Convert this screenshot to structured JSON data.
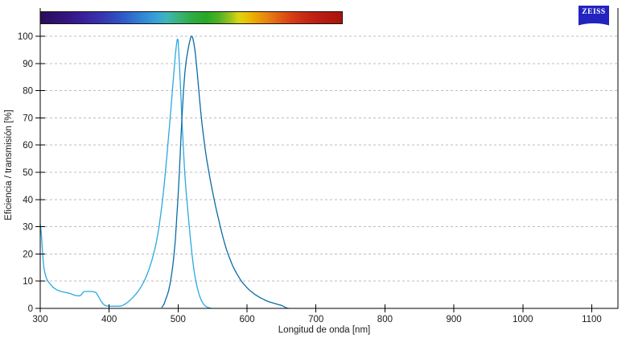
{
  "logo": {
    "text": "ZEISS",
    "background": "#2323C0",
    "text_color": "#FFFFFF"
  },
  "axes": {
    "x_title": "Longitud de onda [nm]",
    "y_title": "Eficiencia / transmisión [%]"
  },
  "colors": {
    "excitation": "#29A9E1",
    "emission": "#0A6BA5",
    "gridline": "#BDBDBD",
    "axis": "#000000",
    "text": "#1A1A1A",
    "background": "#FFFFFF"
  },
  "chart_data": {
    "type": "line",
    "title": "",
    "xlabel": "Longitud de onda [nm]",
    "ylabel": "Eficiencia / transmisión [%]",
    "xlim": [
      300,
      1138
    ],
    "ylim": [
      0,
      100
    ],
    "x_ticks": [
      300,
      400,
      500,
      600,
      700,
      800,
      900,
      1000,
      1100
    ],
    "y_ticks": [
      0,
      10,
      20,
      30,
      40,
      50,
      60,
      70,
      80,
      90,
      100
    ],
    "grid": "horizontal-dashed",
    "legend": "none",
    "series": [
      {
        "name": "excitation-spectrum",
        "color": "#29A9E1",
        "peak_nm": 499,
        "peak_value": 99,
        "points": [
          [
            300,
            31
          ],
          [
            301,
            29
          ],
          [
            302,
            26
          ],
          [
            303,
            22
          ],
          [
            304,
            18.5
          ],
          [
            305,
            15.5
          ],
          [
            306,
            14
          ],
          [
            307,
            12.8
          ],
          [
            308,
            11.8
          ],
          [
            309,
            11
          ],
          [
            311,
            10.1
          ],
          [
            313,
            9.4
          ],
          [
            315,
            8.8
          ],
          [
            318,
            7.9
          ],
          [
            321,
            7.3
          ],
          [
            324,
            6.8
          ],
          [
            328,
            6.4
          ],
          [
            332,
            6.1
          ],
          [
            336,
            5.9
          ],
          [
            340,
            5.7
          ],
          [
            344,
            5.4
          ],
          [
            348,
            5.0
          ],
          [
            352,
            4.7
          ],
          [
            356,
            4.6
          ],
          [
            359,
            4.8
          ],
          [
            361,
            5.6
          ],
          [
            363,
            6.1
          ],
          [
            366,
            6.2
          ],
          [
            370,
            6.2
          ],
          [
            374,
            6.2
          ],
          [
            378,
            6.1
          ],
          [
            381,
            5.8
          ],
          [
            384,
            4.6
          ],
          [
            387,
            3.2
          ],
          [
            390,
            2.0
          ],
          [
            393,
            1.2
          ],
          [
            396,
            0.9
          ],
          [
            400,
            0.8
          ],
          [
            404,
            0.8
          ],
          [
            408,
            0.8
          ],
          [
            412,
            0.8
          ],
          [
            416,
            0.8
          ],
          [
            419,
            1.0
          ],
          [
            422,
            1.4
          ],
          [
            425,
            1.9
          ],
          [
            428,
            2.5
          ],
          [
            431,
            3.2
          ],
          [
            434,
            3.9
          ],
          [
            438,
            5.0
          ],
          [
            442,
            6.3
          ],
          [
            446,
            7.8
          ],
          [
            450,
            9.6
          ],
          [
            454,
            11.8
          ],
          [
            458,
            14.5
          ],
          [
            462,
            17.7
          ],
          [
            466,
            21.5
          ],
          [
            469,
            25
          ],
          [
            472,
            29.5
          ],
          [
            475,
            34.8
          ],
          [
            478,
            41
          ],
          [
            481,
            48.5
          ],
          [
            484,
            57
          ],
          [
            487,
            65.5
          ],
          [
            490,
            74.5
          ],
          [
            492,
            81
          ],
          [
            494,
            87
          ],
          [
            496,
            93
          ],
          [
            497,
            95.5
          ],
          [
            498,
            97.5
          ],
          [
            499,
            99
          ],
          [
            500,
            98.5
          ],
          [
            501,
            94
          ],
          [
            502,
            89
          ],
          [
            503,
            84
          ],
          [
            504,
            78.5
          ],
          [
            505,
            72.5
          ],
          [
            506,
            66.5
          ],
          [
            507,
            62
          ],
          [
            508,
            57
          ],
          [
            509,
            52.5
          ],
          [
            510,
            48.5
          ],
          [
            511,
            45
          ],
          [
            512,
            42
          ],
          [
            514,
            36
          ],
          [
            516,
            30.5
          ],
          [
            518,
            25.2
          ],
          [
            520,
            20.3
          ],
          [
            522,
            16
          ],
          [
            524,
            12.5
          ],
          [
            526,
            9.7
          ],
          [
            528,
            7.4
          ],
          [
            530,
            5.5
          ],
          [
            532,
            4.0
          ],
          [
            534,
            2.8
          ],
          [
            536,
            1.9
          ],
          [
            538,
            1.2
          ],
          [
            540,
            0.8
          ],
          [
            542,
            0.5
          ],
          [
            545,
            0.2
          ],
          [
            548,
            0
          ]
        ]
      },
      {
        "name": "emission-spectrum",
        "color": "#0A6BA5",
        "peak_nm": 520,
        "peak_value": 100,
        "points": [
          [
            476,
            0.3
          ],
          [
            478,
            0.9
          ],
          [
            480,
            1.8
          ],
          [
            482,
            3.3
          ],
          [
            484,
            4.7
          ],
          [
            486,
            6.3
          ],
          [
            488,
            8.6
          ],
          [
            490,
            11.5
          ],
          [
            492,
            15
          ],
          [
            494,
            19.5
          ],
          [
            496,
            25
          ],
          [
            498,
            33
          ],
          [
            500,
            41.5
          ],
          [
            502,
            51
          ],
          [
            504,
            62
          ],
          [
            505,
            67
          ],
          [
            506,
            72
          ],
          [
            507,
            76.5
          ],
          [
            508,
            80.5
          ],
          [
            509,
            84
          ],
          [
            510,
            87
          ],
          [
            511,
            89.3
          ],
          [
            512,
            91.3
          ],
          [
            514,
            94.6
          ],
          [
            516,
            97.2
          ],
          [
            518,
            99.3
          ],
          [
            519,
            99.9
          ],
          [
            520,
            100
          ],
          [
            521,
            99.6
          ],
          [
            522,
            98.5
          ],
          [
            523,
            97.2
          ],
          [
            524,
            95.6
          ],
          [
            525,
            93.6
          ],
          [
            526,
            91.2
          ],
          [
            527,
            88.6
          ],
          [
            528,
            85.8
          ],
          [
            529,
            83
          ],
          [
            530,
            80.2
          ],
          [
            531,
            77.3
          ],
          [
            532,
            74.6
          ],
          [
            533,
            72
          ],
          [
            534,
            69.5
          ],
          [
            535,
            67.2
          ],
          [
            536,
            65
          ],
          [
            537,
            63
          ],
          [
            538,
            61
          ],
          [
            540,
            57.3
          ],
          [
            542,
            54
          ],
          [
            544,
            51
          ],
          [
            546,
            48.1
          ],
          [
            548,
            45.4
          ],
          [
            550,
            42.9
          ],
          [
            552,
            40.4
          ],
          [
            554,
            38
          ],
          [
            556,
            35.7
          ],
          [
            558,
            33.5
          ],
          [
            560,
            31.3
          ],
          [
            562,
            29.2
          ],
          [
            564,
            27.2
          ],
          [
            566,
            25.3
          ],
          [
            568,
            23.5
          ],
          [
            570,
            21.8
          ],
          [
            573,
            19.6
          ],
          [
            576,
            17.6
          ],
          [
            579,
            15.8
          ],
          [
            582,
            14.2
          ],
          [
            585,
            12.8
          ],
          [
            588,
            11.5
          ],
          [
            591,
            10.3
          ],
          [
            594,
            9.3
          ],
          [
            597,
            8.4
          ],
          [
            600,
            7.6
          ],
          [
            604,
            6.6
          ],
          [
            608,
            5.8
          ],
          [
            612,
            5.0
          ],
          [
            616,
            4.4
          ],
          [
            620,
            3.8
          ],
          [
            624,
            3.3
          ],
          [
            628,
            2.8
          ],
          [
            632,
            2.4
          ],
          [
            636,
            2.1
          ],
          [
            640,
            1.8
          ],
          [
            644,
            1.5
          ],
          [
            647,
            1.3
          ],
          [
            650,
            1.1
          ],
          [
            652,
            0.9
          ],
          [
            654,
            0.6
          ],
          [
            656,
            0.3
          ],
          [
            658,
            0.1
          ],
          [
            660,
            0
          ]
        ]
      }
    ],
    "spectrum_bar": {
      "wavelength_range": [
        300,
        740
      ],
      "stops": [
        {
          "pos": 0.0,
          "color": "#2A0D5C"
        },
        {
          "pos": 0.08,
          "color": "#33147E"
        },
        {
          "pos": 0.14,
          "color": "#38209B"
        },
        {
          "pos": 0.2,
          "color": "#3733B0"
        },
        {
          "pos": 0.26,
          "color": "#2F52C4"
        },
        {
          "pos": 0.32,
          "color": "#2E7BD2"
        },
        {
          "pos": 0.38,
          "color": "#36A0DC"
        },
        {
          "pos": 0.42,
          "color": "#3FB6B4"
        },
        {
          "pos": 0.46,
          "color": "#39B277"
        },
        {
          "pos": 0.5,
          "color": "#2EAC44"
        },
        {
          "pos": 0.55,
          "color": "#27A827"
        },
        {
          "pos": 0.59,
          "color": "#4FB122"
        },
        {
          "pos": 0.63,
          "color": "#9AC31D"
        },
        {
          "pos": 0.655,
          "color": "#D8D414"
        },
        {
          "pos": 0.68,
          "color": "#E8C406"
        },
        {
          "pos": 0.71,
          "color": "#ECA800"
        },
        {
          "pos": 0.75,
          "color": "#E88410"
        },
        {
          "pos": 0.79,
          "color": "#E06014"
        },
        {
          "pos": 0.83,
          "color": "#D84015"
        },
        {
          "pos": 0.875,
          "color": "#C92A14"
        },
        {
          "pos": 0.92,
          "color": "#BB1D11"
        },
        {
          "pos": 1.0,
          "color": "#A9140E"
        }
      ]
    }
  }
}
